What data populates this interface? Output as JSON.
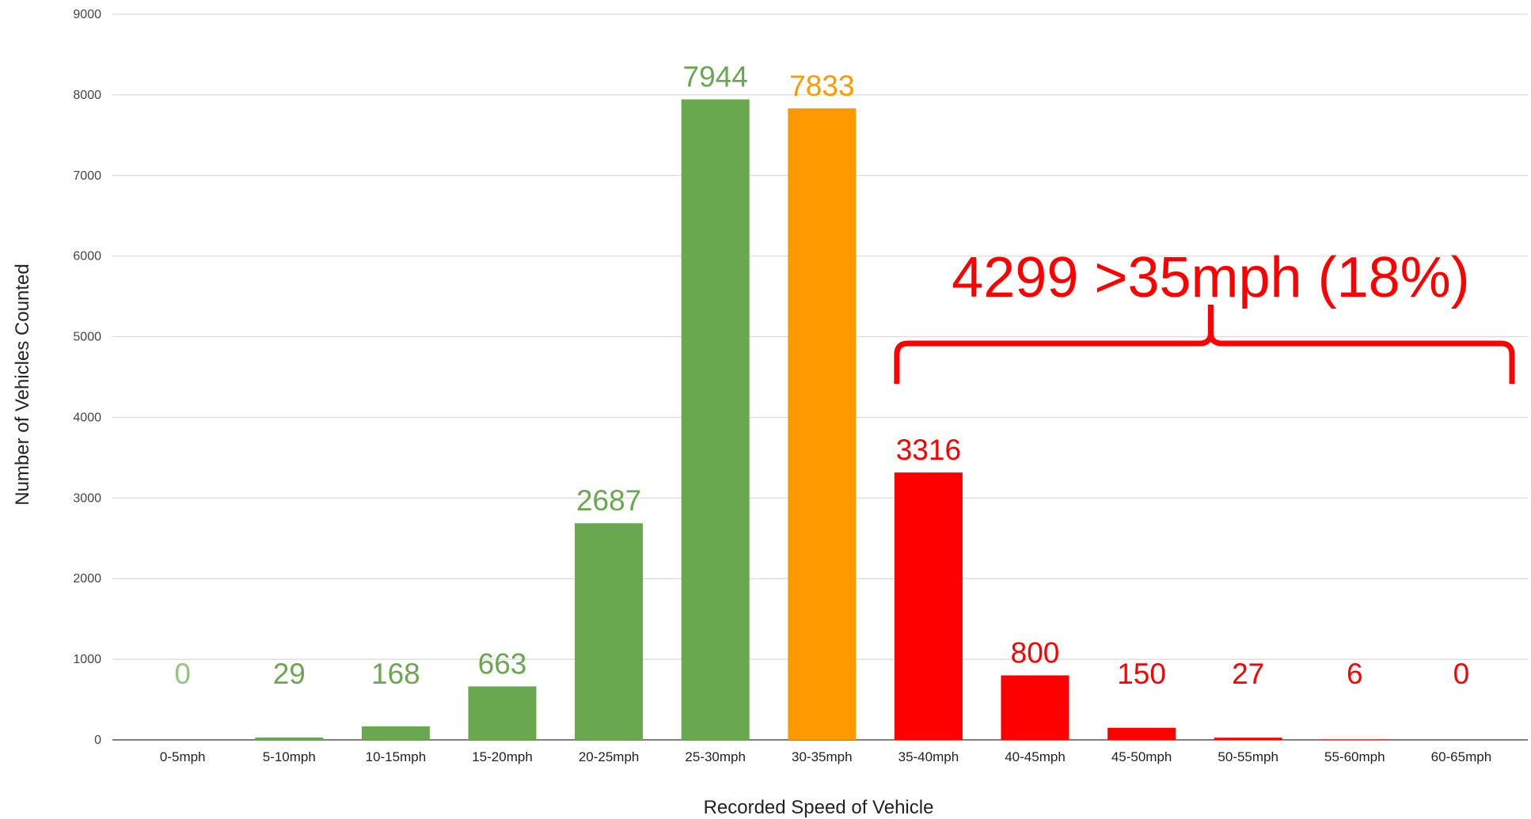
{
  "chart_data": {
    "type": "bar",
    "categories": [
      "0-5mph",
      "5-10mph",
      "10-15mph",
      "15-20mph",
      "20-25mph",
      "25-30mph",
      "30-35mph",
      "35-40mph",
      "40-45mph",
      "45-50mph",
      "50-55mph",
      "55-60mph",
      "60-65mph"
    ],
    "values": [
      0,
      29,
      168,
      663,
      2687,
      7944,
      7833,
      3316,
      800,
      150,
      27,
      6,
      0
    ],
    "data_labels": [
      "0",
      "29",
      "168",
      "663",
      "2687",
      "7944",
      "7833",
      "3316",
      "800",
      "150",
      "27",
      "6",
      "0"
    ],
    "bar_colors": [
      "#6aa84f",
      "#6aa84f",
      "#6aa84f",
      "#6aa84f",
      "#6aa84f",
      "#6aa84f",
      "#ff9900",
      "#ff0000",
      "#ff0000",
      "#ff0000",
      "#ff0000",
      "#ff0000",
      "#ff0000"
    ],
    "label_colors": [
      "#93c47d",
      "#6aa84f",
      "#6aa84f",
      "#6aa84f",
      "#6aa84f",
      "#6aa84f",
      "#ff9900",
      "#ff0000",
      "#ff0000",
      "#ff0000",
      "#ff0000",
      "#ff0000",
      "#ff0000"
    ],
    "title": "",
    "xlabel": "Recorded Speed of Vehicle",
    "ylabel": "Number of Vehicles Counted",
    "ylim": [
      0,
      9000
    ],
    "yticks": [
      0,
      1000,
      2000,
      3000,
      4000,
      5000,
      6000,
      7000,
      8000,
      9000
    ],
    "grid": true,
    "legend": "none",
    "annotation": {
      "text": "4299 >35mph (18%)",
      "color": "#ff0000",
      "span_categories": [
        "35-40mph",
        "60-65mph"
      ]
    }
  }
}
